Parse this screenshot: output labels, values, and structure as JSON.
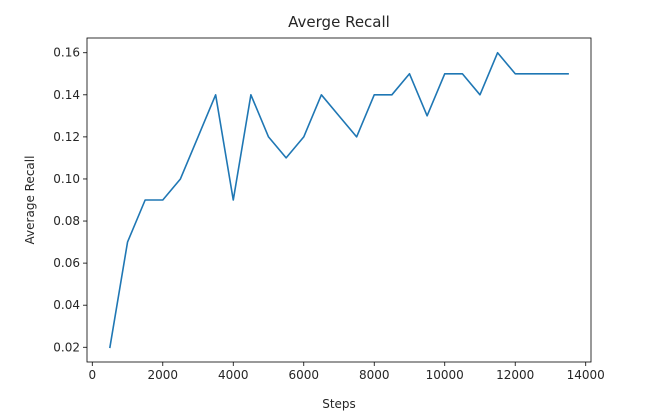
{
  "chart_data": {
    "type": "line",
    "title": "Averge Recall",
    "xlabel": "Steps",
    "ylabel": "Average Recall",
    "xlim": [
      -150,
      14150
    ],
    "ylim": [
      0.013,
      0.167
    ],
    "xticks": [
      0,
      2000,
      4000,
      6000,
      8000,
      10000,
      12000,
      14000
    ],
    "yticks": [
      0.02,
      0.04,
      0.06,
      0.08,
      0.1,
      0.12,
      0.14,
      0.16
    ],
    "xtick_labels": [
      "0",
      "2000",
      "4000",
      "6000",
      "8000",
      "10000",
      "12000",
      "14000"
    ],
    "ytick_labels": [
      "0.02",
      "0.04",
      "0.06",
      "0.08",
      "0.10",
      "0.12",
      "0.14",
      "0.16"
    ],
    "grid": false,
    "legend": "none",
    "series": [
      {
        "color": "#1f77b4",
        "x": [
          500,
          1000,
          1500,
          2000,
          2500,
          3000,
          3500,
          4000,
          4500,
          5000,
          5500,
          6000,
          6500,
          7000,
          7500,
          8000,
          8500,
          9000,
          9500,
          10000,
          10500,
          11000,
          11500,
          12000,
          12500,
          13000,
          13500
        ],
        "y": [
          0.02,
          0.07,
          0.09,
          0.09,
          0.1,
          0.12,
          0.14,
          0.09,
          0.14,
          0.12,
          0.11,
          0.12,
          0.14,
          0.13,
          0.12,
          0.14,
          0.14,
          0.15,
          0.13,
          0.15,
          0.15,
          0.14,
          0.16,
          0.15,
          0.15,
          0.15,
          0.15
        ]
      }
    ]
  }
}
